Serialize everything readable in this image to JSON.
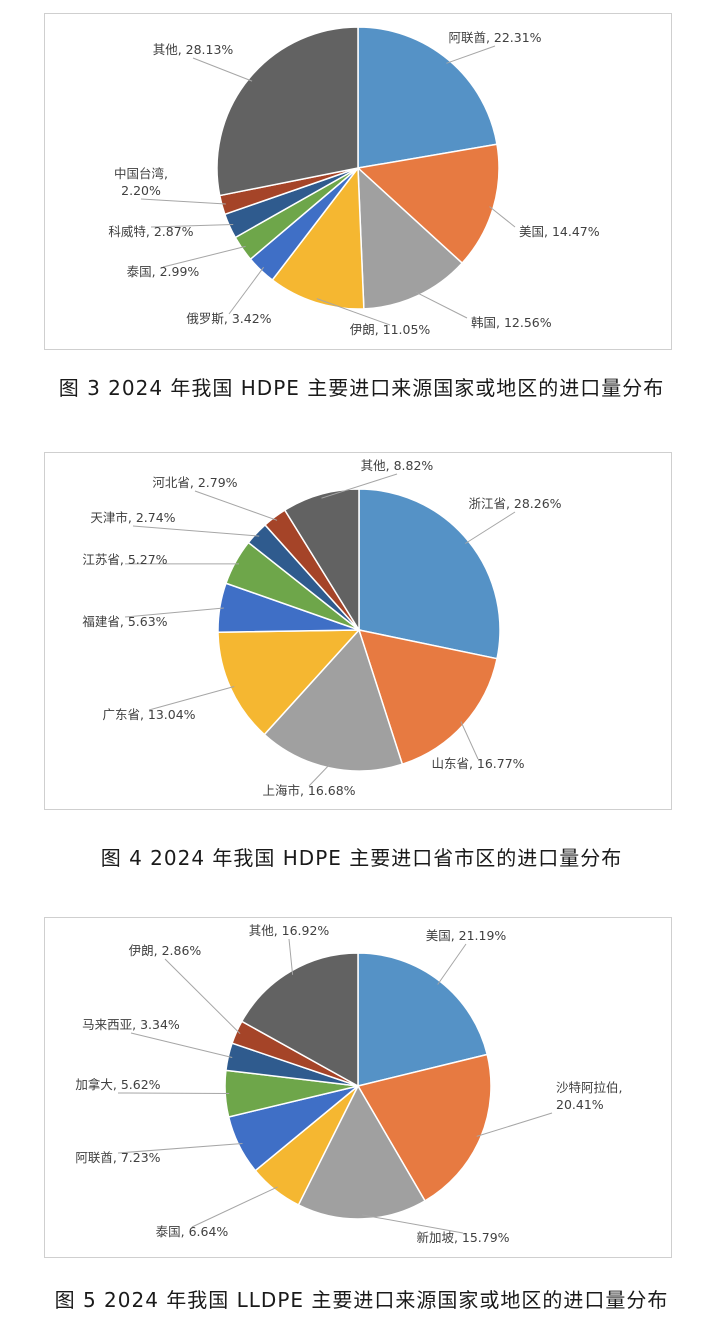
{
  "chart_data": [
    {
      "type": "pie",
      "caption": "图 3 2024 年我国 HDPE 主要进口来源国家或地区的进口量分布",
      "unit": "%",
      "slices": [
        {
          "name": "阿联酋",
          "value": 22.31,
          "color": "#5592c6"
        },
        {
          "name": "美国",
          "value": 14.47,
          "color": "#e77a41"
        },
        {
          "name": "韩国",
          "value": 12.56,
          "color": "#a0a0a0"
        },
        {
          "name": "伊朗",
          "value": 11.05,
          "color": "#f5b731"
        },
        {
          "name": "俄罗斯",
          "value": 3.42,
          "color": "#3f6fc6"
        },
        {
          "name": "泰国",
          "value": 2.99,
          "color": "#6ea64a"
        },
        {
          "name": "科威特",
          "value": 2.87,
          "color": "#2f5b8e"
        },
        {
          "name": "中国台湾",
          "value": 2.2,
          "color": "#a54428"
        },
        {
          "name": "其他",
          "value": 28.13,
          "color": "#626262"
        }
      ],
      "labels": [
        "阿联酋, 22.31%",
        "美国, 14.47%",
        "韩国, 12.56%",
        "伊朗, 11.05%",
        "俄罗斯, 3.42%",
        "泰国, 2.99%",
        "科威特, 2.87%",
        "中国台湾,\n2.20%",
        "其他, 28.13%"
      ]
    },
    {
      "type": "pie",
      "caption": "图 4 2024 年我国 HDPE 主要进口省市区的进口量分布",
      "unit": "%",
      "slices": [
        {
          "name": "浙江省",
          "value": 28.26,
          "color": "#5592c6"
        },
        {
          "name": "山东省",
          "value": 16.77,
          "color": "#e77a41"
        },
        {
          "name": "上海市",
          "value": 16.68,
          "color": "#a0a0a0"
        },
        {
          "name": "广东省",
          "value": 13.04,
          "color": "#f5b731"
        },
        {
          "name": "福建省",
          "value": 5.63,
          "color": "#3f6fc6"
        },
        {
          "name": "江苏省",
          "value": 5.27,
          "color": "#6ea64a"
        },
        {
          "name": "天津市",
          "value": 2.74,
          "color": "#2f5b8e"
        },
        {
          "name": "河北省",
          "value": 2.79,
          "color": "#a54428"
        },
        {
          "name": "其他",
          "value": 8.82,
          "color": "#626262"
        }
      ],
      "labels": [
        "浙江省, 28.26%",
        "山东省, 16.77%",
        "上海市, 16.68%",
        "广东省, 13.04%",
        "福建省, 5.63%",
        "江苏省, 5.27%",
        "天津市, 2.74%",
        "河北省, 2.79%",
        "其他, 8.82%"
      ]
    },
    {
      "type": "pie",
      "caption": "图 5 2024 年我国 LLDPE 主要进口来源国家或地区的进口量分布",
      "unit": "%",
      "slices": [
        {
          "name": "美国",
          "value": 21.19,
          "color": "#5592c6"
        },
        {
          "name": "沙特阿拉伯",
          "value": 20.41,
          "color": "#e77a41"
        },
        {
          "name": "新加坡",
          "value": 15.79,
          "color": "#a0a0a0"
        },
        {
          "name": "泰国",
          "value": 6.64,
          "color": "#f5b731"
        },
        {
          "name": "阿联酋",
          "value": 7.23,
          "color": "#3f6fc6"
        },
        {
          "name": "加拿大",
          "value": 5.62,
          "color": "#6ea64a"
        },
        {
          "name": "马来西亚",
          "value": 3.34,
          "color": "#2f5b8e"
        },
        {
          "name": "伊朗",
          "value": 2.86,
          "color": "#a54428"
        },
        {
          "name": "其他",
          "value": 16.92,
          "color": "#626262"
        }
      ],
      "labels": [
        "美国, 21.19%",
        "沙特阿拉伯,\n20.41%",
        "新加坡, 15.79%",
        "泰国, 6.64%",
        "阿联酋, 7.23%",
        "加拿大, 5.62%",
        "马来西亚, 3.34%",
        "伊朗, 2.86%",
        "其他, 16.92%"
      ]
    }
  ]
}
